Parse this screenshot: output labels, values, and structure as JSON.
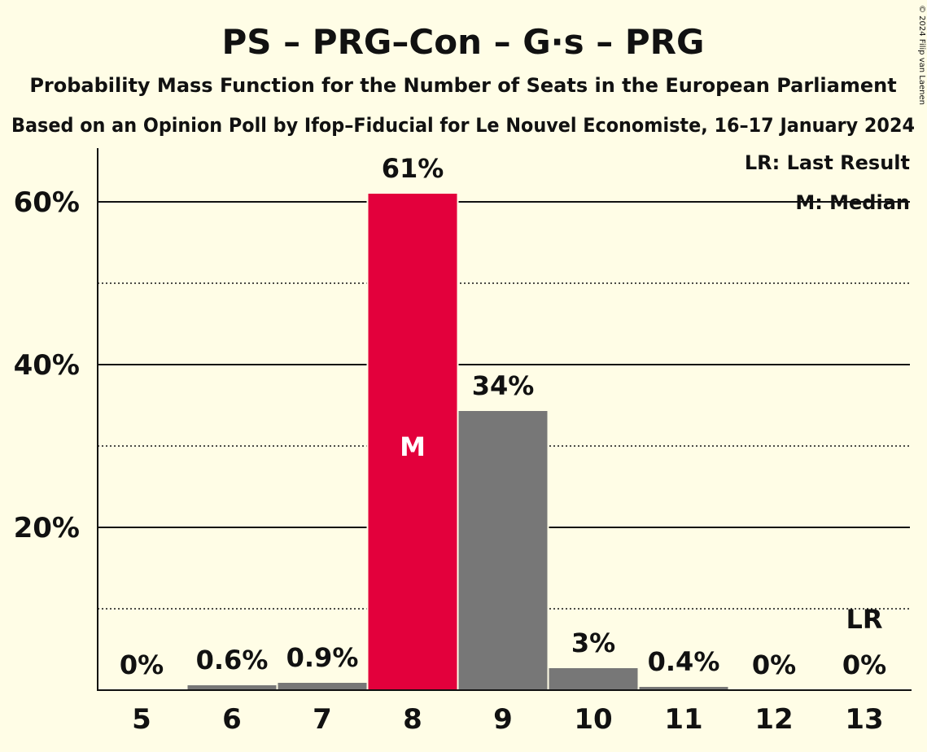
{
  "chart_data": {
    "type": "bar",
    "title": "PS – PRG–Con – G·s – PRG",
    "subtitle": "Probability Mass Function for the Number of Seats in the European Parliament",
    "subtitle2": "Based on an Opinion Poll by Ifop–Fiducial for Le Nouvel Economiste, 16–17 January 2024",
    "copyright": "© 2024 Filip van Laenen",
    "legend": {
      "lr": "LR: Last Result",
      "m": "M: Median",
      "placement": "top-right"
    },
    "categories": [
      "5",
      "6",
      "7",
      "8",
      "9",
      "10",
      "11",
      "12",
      "13"
    ],
    "values": [
      0,
      0.6,
      0.9,
      61,
      34.3,
      2.7,
      0.4,
      0,
      0
    ],
    "data_labels": [
      "0%",
      "0.6%",
      "0.9%",
      "61%",
      "34%",
      "3%",
      "0.4%",
      "0%",
      "0%"
    ],
    "median_index": 3,
    "median_label": "M",
    "last_result_index": 8,
    "last_result_label": "LR",
    "ylim": [
      0,
      66
    ],
    "yticks": [
      20,
      40,
      60
    ],
    "ytick_labels": [
      "20%",
      "40%",
      "60%"
    ],
    "minor_yticks": [
      10,
      30,
      50
    ],
    "grid": true,
    "colors": {
      "bar": "#777777",
      "median_bar": "#E3003C",
      "background": "#FFFDE6",
      "median_text": "#FFFFFF",
      "text": "#111111"
    }
  }
}
